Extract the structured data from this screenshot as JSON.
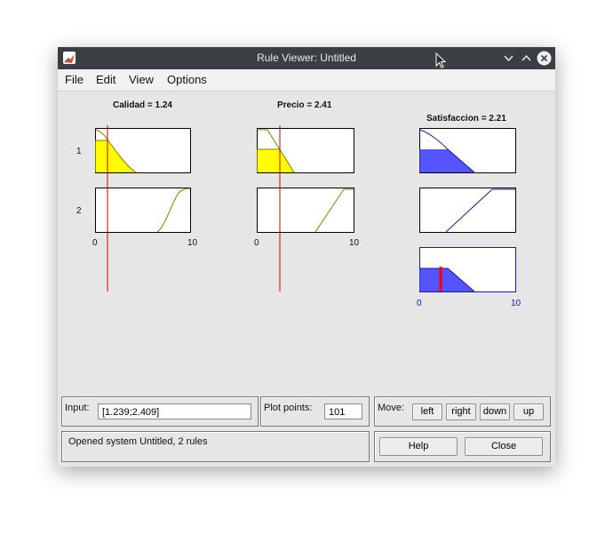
{
  "window": {
    "title": "Rule Viewer: Untitled",
    "menu": [
      "File",
      "Edit",
      "View",
      "Options"
    ]
  },
  "variables": {
    "calidad_title": "Calidad = 1.24",
    "precio_title": "Precio = 2.41",
    "satisfaccion_title": "Satisfaccion = 2.21"
  },
  "rules": [
    "1",
    "2"
  ],
  "axis_ticks": {
    "calidad": [
      "0",
      "10"
    ],
    "precio": [
      "0",
      "10"
    ],
    "satisfaccion": [
      "0",
      "10"
    ]
  },
  "controls": {
    "input_label": "Input:",
    "input_value": "[1.239;2.409]",
    "plot_points_label": "Plot points:",
    "plot_points_value": "101",
    "move_label": "Move:",
    "move_buttons": [
      "left",
      "right",
      "down",
      "up"
    ],
    "status": "Opened system Untitled, 2 rules",
    "help_button": "Help",
    "close_button": "Close"
  },
  "colors": {
    "input_fill": "#ffff00",
    "output_fill": "#5555ff",
    "index_line": "#cc0000",
    "output_marker": "#ff0000"
  }
}
